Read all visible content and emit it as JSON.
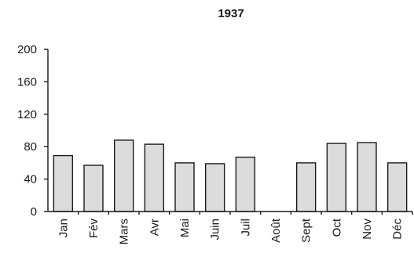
{
  "chart_data": {
    "type": "bar",
    "title": "1937",
    "xlabel": "",
    "ylabel": "",
    "categories": [
      "Jan",
      "Fév",
      "Mars",
      "Avr",
      "Mai",
      "Juin",
      "Juil",
      "Août",
      "Sept",
      "Oct",
      "Nov",
      "Déc"
    ],
    "values": [
      69,
      57,
      88,
      83,
      60,
      59,
      67,
      0,
      60,
      84,
      85,
      60
    ],
    "ylim": [
      0,
      200
    ],
    "yticks": [
      "0",
      "40",
      "80",
      "120",
      "160",
      "200"
    ],
    "grid": false,
    "legend": "none",
    "bar_color": "#dcdcdc",
    "edge_color": "#1a1a1a"
  }
}
